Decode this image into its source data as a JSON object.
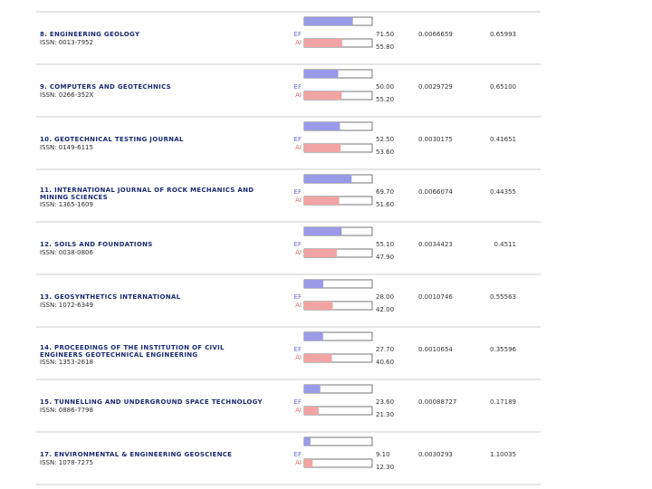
{
  "table": {
    "row_tag_ef": "EF",
    "row_tag_ai": "AI",
    "rows": [
      {
        "title": "8. ENGINEERING GEOLOGY",
        "issn": "ISSN: 0013-7952",
        "ef_pct": {
          "value": 71.5,
          "label": "71.50"
        },
        "ai_pct": {
          "value": 55.8,
          "label": "55.80"
        },
        "eigenfactor": "0.0066659",
        "article_influence": "0.65993"
      },
      {
        "title": "9. COMPUTERS AND GEOTECHNICS",
        "issn": "ISSN: 0266-352X",
        "ef_pct": {
          "value": 50.0,
          "label": "50.00"
        },
        "ai_pct": {
          "value": 55.2,
          "label": "55.20"
        },
        "eigenfactor": "0.0029729",
        "article_influence": "0.65100"
      },
      {
        "title": "10. GEOTECHNICAL TESTING JOURNAL",
        "issn": "ISSN: 0149-6115",
        "ef_pct": {
          "value": 52.5,
          "label": "52.50"
        },
        "ai_pct": {
          "value": 53.6,
          "label": "53.60"
        },
        "eigenfactor": "0.0030175",
        "article_influence": "0.41651"
      },
      {
        "title": "11. INTERNATIONAL JOURNAL OF ROCK MECHANICS AND MINING SCIENCES",
        "issn": "ISSN: 1365-1609",
        "ef_pct": {
          "value": 69.7,
          "label": "69.70"
        },
        "ai_pct": {
          "value": 51.6,
          "label": "51.60"
        },
        "eigenfactor": "0.0066074",
        "article_influence": "0.44355"
      },
      {
        "title": "12. SOILS AND FOUNDATIONS",
        "issn": "ISSN: 0038-0806",
        "ef_pct": {
          "value": 55.1,
          "label": "55.10"
        },
        "ai_pct": {
          "value": 47.9,
          "label": "47.90"
        },
        "eigenfactor": "0.0034423",
        "article_influence": "0.4511"
      },
      {
        "title": "13. GEOSYNTHETICS INTERNATIONAL",
        "issn": "ISSN: 1072-6349",
        "ef_pct": {
          "value": 28.0,
          "label": "28.00"
        },
        "ai_pct": {
          "value": 42.0,
          "label": "42.00"
        },
        "eigenfactor": "0.0010746",
        "article_influence": "0.55563"
      },
      {
        "title": "14. PROCEEDINGS OF THE INSTITUTION OF CIVIL ENGINEERS GEOTECHNICAL ENGINEERING",
        "issn": "ISSN: 1353-2618",
        "ef_pct": {
          "value": 27.7,
          "label": "27.70"
        },
        "ai_pct": {
          "value": 40.6,
          "label": "40.60"
        },
        "eigenfactor": "0.0010654",
        "article_influence": "0.35596"
      },
      {
        "title": "15. TUNNELLING AND UNDERGROUND SPACE TECHNOLOGY",
        "issn": "ISSN: 0886-7798",
        "ef_pct": {
          "value": 23.6,
          "label": "23.60"
        },
        "ai_pct": {
          "value": 21.3,
          "label": "21.30"
        },
        "eigenfactor": "0.00088727",
        "article_influence": "0.17189"
      },
      {
        "title": "17. ENVIRONMENTAL & ENGINEERING GEOSCIENCE",
        "issn": "ISSN: 1078-7275",
        "ef_pct": {
          "value": 9.1,
          "label": "9.10"
        },
        "ai_pct": {
          "value": 12.3,
          "label": "12.30"
        },
        "eigenfactor": "0.0030293",
        "article_influence": "1.10035"
      }
    ]
  }
}
